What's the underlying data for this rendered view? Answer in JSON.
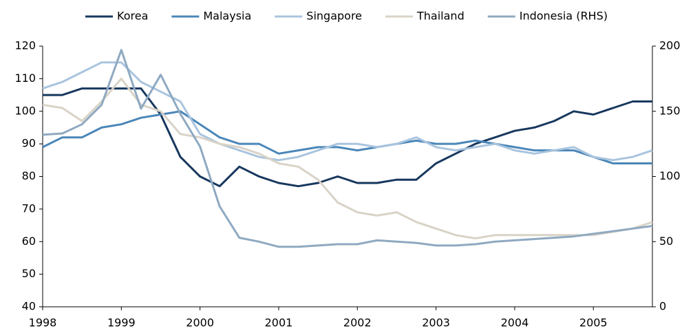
{
  "chart_data": {
    "type": "line",
    "x": [
      1998,
      1998.25,
      1998.5,
      1998.75,
      1999,
      1999.25,
      1999.5,
      1999.75,
      2000,
      2000.25,
      2000.5,
      2000.75,
      2001,
      2001.25,
      2001.5,
      2001.75,
      2002,
      2002.25,
      2002.5,
      2002.75,
      2003,
      2003.25,
      2003.5,
      2003.75,
      2004,
      2004.25,
      2004.5,
      2004.75,
      2005,
      2005.25,
      2005.5,
      2005.75
    ],
    "series": [
      {
        "name": "Korea",
        "color": "#17375e",
        "values": [
          105,
          105,
          107,
          107,
          107,
          107,
          99,
          86,
          80,
          77,
          83,
          80,
          78,
          77,
          78,
          80,
          78,
          78,
          79,
          79,
          84,
          87,
          90,
          92,
          94,
          95,
          97,
          100,
          99,
          101,
          103,
          103
        ]
      },
      {
        "name": "Malaysia",
        "color": "#4a86b8",
        "values": [
          89,
          92,
          92,
          95,
          96,
          98,
          99,
          100,
          96,
          92,
          90,
          90,
          87,
          88,
          89,
          89,
          88,
          89,
          90,
          91,
          90,
          90,
          91,
          90,
          89,
          88,
          88,
          88,
          86,
          84,
          84,
          84
        ]
      },
      {
        "name": "Singapore",
        "color": "#a9c4de",
        "values": [
          107,
          109,
          112,
          115,
          115,
          109,
          106,
          103,
          93,
          90,
          88,
          86,
          85,
          86,
          88,
          90,
          90,
          89,
          90,
          92,
          89,
          88,
          89,
          90,
          88,
          87,
          88,
          89,
          86,
          85,
          86,
          88
        ]
      },
      {
        "name": "Thailand",
        "color": "#d9d3c7",
        "values": [
          102,
          101,
          97,
          103,
          110,
          102,
          100,
          93,
          92,
          90,
          89,
          87,
          84,
          83,
          79,
          72,
          69,
          68,
          69,
          66,
          64,
          62,
          61,
          62,
          62,
          62,
          62,
          62,
          62,
          63,
          64,
          66
        ]
      },
      {
        "name": "Indonesia (RHS)",
        "color": "#8ea9c1",
        "axis": "y2",
        "values": [
          132,
          133,
          140,
          155,
          197,
          152,
          178,
          148,
          123,
          77,
          53,
          50,
          46,
          46,
          47,
          48,
          48,
          51,
          50,
          49,
          47,
          47,
          48,
          50,
          51,
          52,
          53,
          54,
          56,
          58,
          60,
          62
        ]
      }
    ],
    "xlim": [
      1998,
      2005.75
    ],
    "xticks": [
      1998,
      1999,
      2000,
      2001,
      2002,
      2003,
      2004,
      2005
    ],
    "ylim": [
      40,
      120
    ],
    "yticks": [
      40,
      50,
      60,
      70,
      80,
      90,
      100,
      110,
      120
    ],
    "y2lim": [
      0,
      200
    ],
    "y2ticks": [
      0,
      50,
      100,
      150,
      200
    ],
    "legend": "top"
  }
}
